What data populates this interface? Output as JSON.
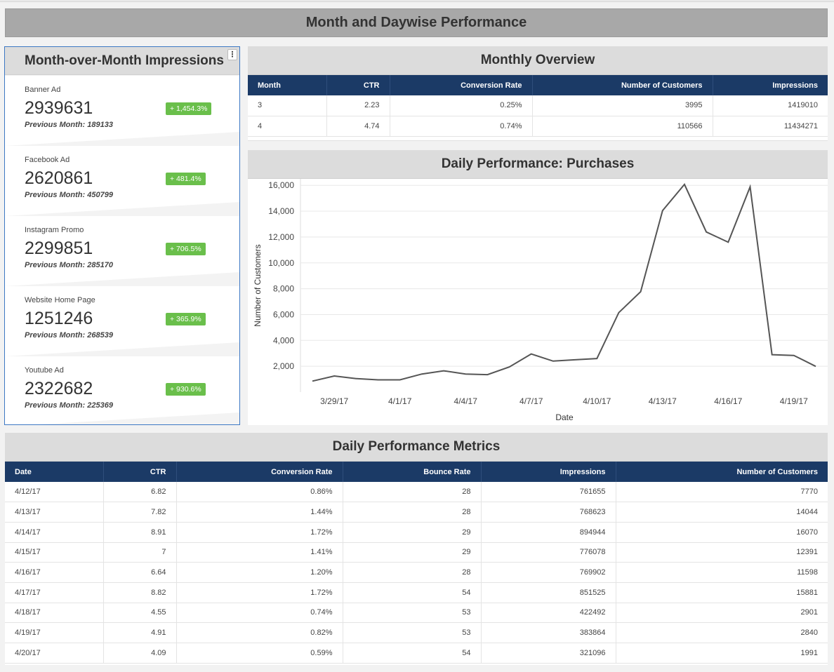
{
  "header": {
    "title": "Month and Daywise Performance"
  },
  "kpi_panel": {
    "title": "Month-over-Month Impressions",
    "menu_glyph": "⋮",
    "cards": [
      {
        "name": "Banner Ad",
        "value": "2939631",
        "change": "+ 1,454.3%",
        "previous": "Previous Month: 189133"
      },
      {
        "name": "Facebook Ad",
        "value": "2620861",
        "change": "+ 481.4%",
        "previous": "Previous Month: 450799"
      },
      {
        "name": "Instagram Promo",
        "value": "2299851",
        "change": "+ 706.5%",
        "previous": "Previous Month: 285170"
      },
      {
        "name": "Website Home Page",
        "value": "1251246",
        "change": "+ 365.9%",
        "previous": "Previous Month: 268539"
      },
      {
        "name": "Youtube Ad",
        "value": "2322682",
        "change": "+ 930.6%",
        "previous": "Previous Month: 225369"
      }
    ]
  },
  "monthly_overview": {
    "title": "Monthly Overview",
    "columns": [
      "Month",
      "CTR",
      "Conversion Rate",
      "Number of Customers",
      "Impressions"
    ],
    "rows": [
      [
        "3",
        "2.23",
        "0.25%",
        "3995",
        "1419010"
      ],
      [
        "4",
        "4.74",
        "0.74%",
        "110566",
        "11434271"
      ]
    ]
  },
  "chart_data": {
    "type": "line",
    "title": "Daily Performance: Purchases",
    "xlabel": "Date",
    "ylabel": "Number of Customers",
    "x_ticks": [
      "3/29/17",
      "4/1/17",
      "4/4/17",
      "4/7/17",
      "4/10/17",
      "4/13/17",
      "4/16/17",
      "4/19/17"
    ],
    "y_ticks": [
      "2,000",
      "4,000",
      "6,000",
      "8,000",
      "10,000",
      "12,000",
      "14,000",
      "16,000"
    ],
    "ylim": [
      0,
      16500
    ],
    "series": [
      {
        "x": [
          "3/28/17",
          "3/29/17",
          "3/30/17",
          "3/31/17",
          "4/1/17",
          "4/2/17",
          "4/3/17",
          "4/4/17",
          "4/5/17",
          "4/6/17",
          "4/7/17",
          "4/8/17",
          "4/9/17",
          "4/10/17",
          "4/11/17",
          "4/12/17",
          "4/13/17",
          "4/14/17",
          "4/15/17",
          "4/16/17",
          "4/17/17",
          "4/18/17",
          "4/19/17",
          "4/20/17"
        ],
        "values": [
          850,
          1250,
          1050,
          950,
          950,
          1400,
          1650,
          1400,
          1350,
          1950,
          2950,
          2400,
          2500,
          2600,
          6150,
          7770,
          14044,
          16070,
          12391,
          11598,
          15881,
          2901,
          2840,
          1991
        ]
      }
    ],
    "colors": {
      "line": "#555555",
      "grid": "#e8e8e8"
    },
    "grid": true,
    "legend": "none"
  },
  "daily_metrics": {
    "title": "Daily Performance Metrics",
    "columns": [
      "Date",
      "CTR",
      "Conversion Rate",
      "Bounce Rate",
      "Impressions",
      "Number of Customers"
    ],
    "rows": [
      [
        "4/12/17",
        "6.82",
        "0.86%",
        "28",
        "761655",
        "7770"
      ],
      [
        "4/13/17",
        "7.82",
        "1.44%",
        "28",
        "768623",
        "14044"
      ],
      [
        "4/14/17",
        "8.91",
        "1.72%",
        "29",
        "894944",
        "16070"
      ],
      [
        "4/15/17",
        "7",
        "1.41%",
        "29",
        "776078",
        "12391"
      ],
      [
        "4/16/17",
        "6.64",
        "1.20%",
        "28",
        "769902",
        "11598"
      ],
      [
        "4/17/17",
        "8.82",
        "1.72%",
        "54",
        "851525",
        "15881"
      ],
      [
        "4/18/17",
        "4.55",
        "0.74%",
        "53",
        "422492",
        "2901"
      ],
      [
        "4/19/17",
        "4.91",
        "0.82%",
        "53",
        "383864",
        "2840"
      ],
      [
        "4/20/17",
        "4.09",
        "0.59%",
        "54",
        "321096",
        "1991"
      ]
    ]
  },
  "colors": {
    "table_header": "#1b3a66",
    "badge": "#6abf4b",
    "panel_header": "#dcdcdc",
    "banner": "#a8a8a8",
    "selected_border": "#3d78c4"
  }
}
